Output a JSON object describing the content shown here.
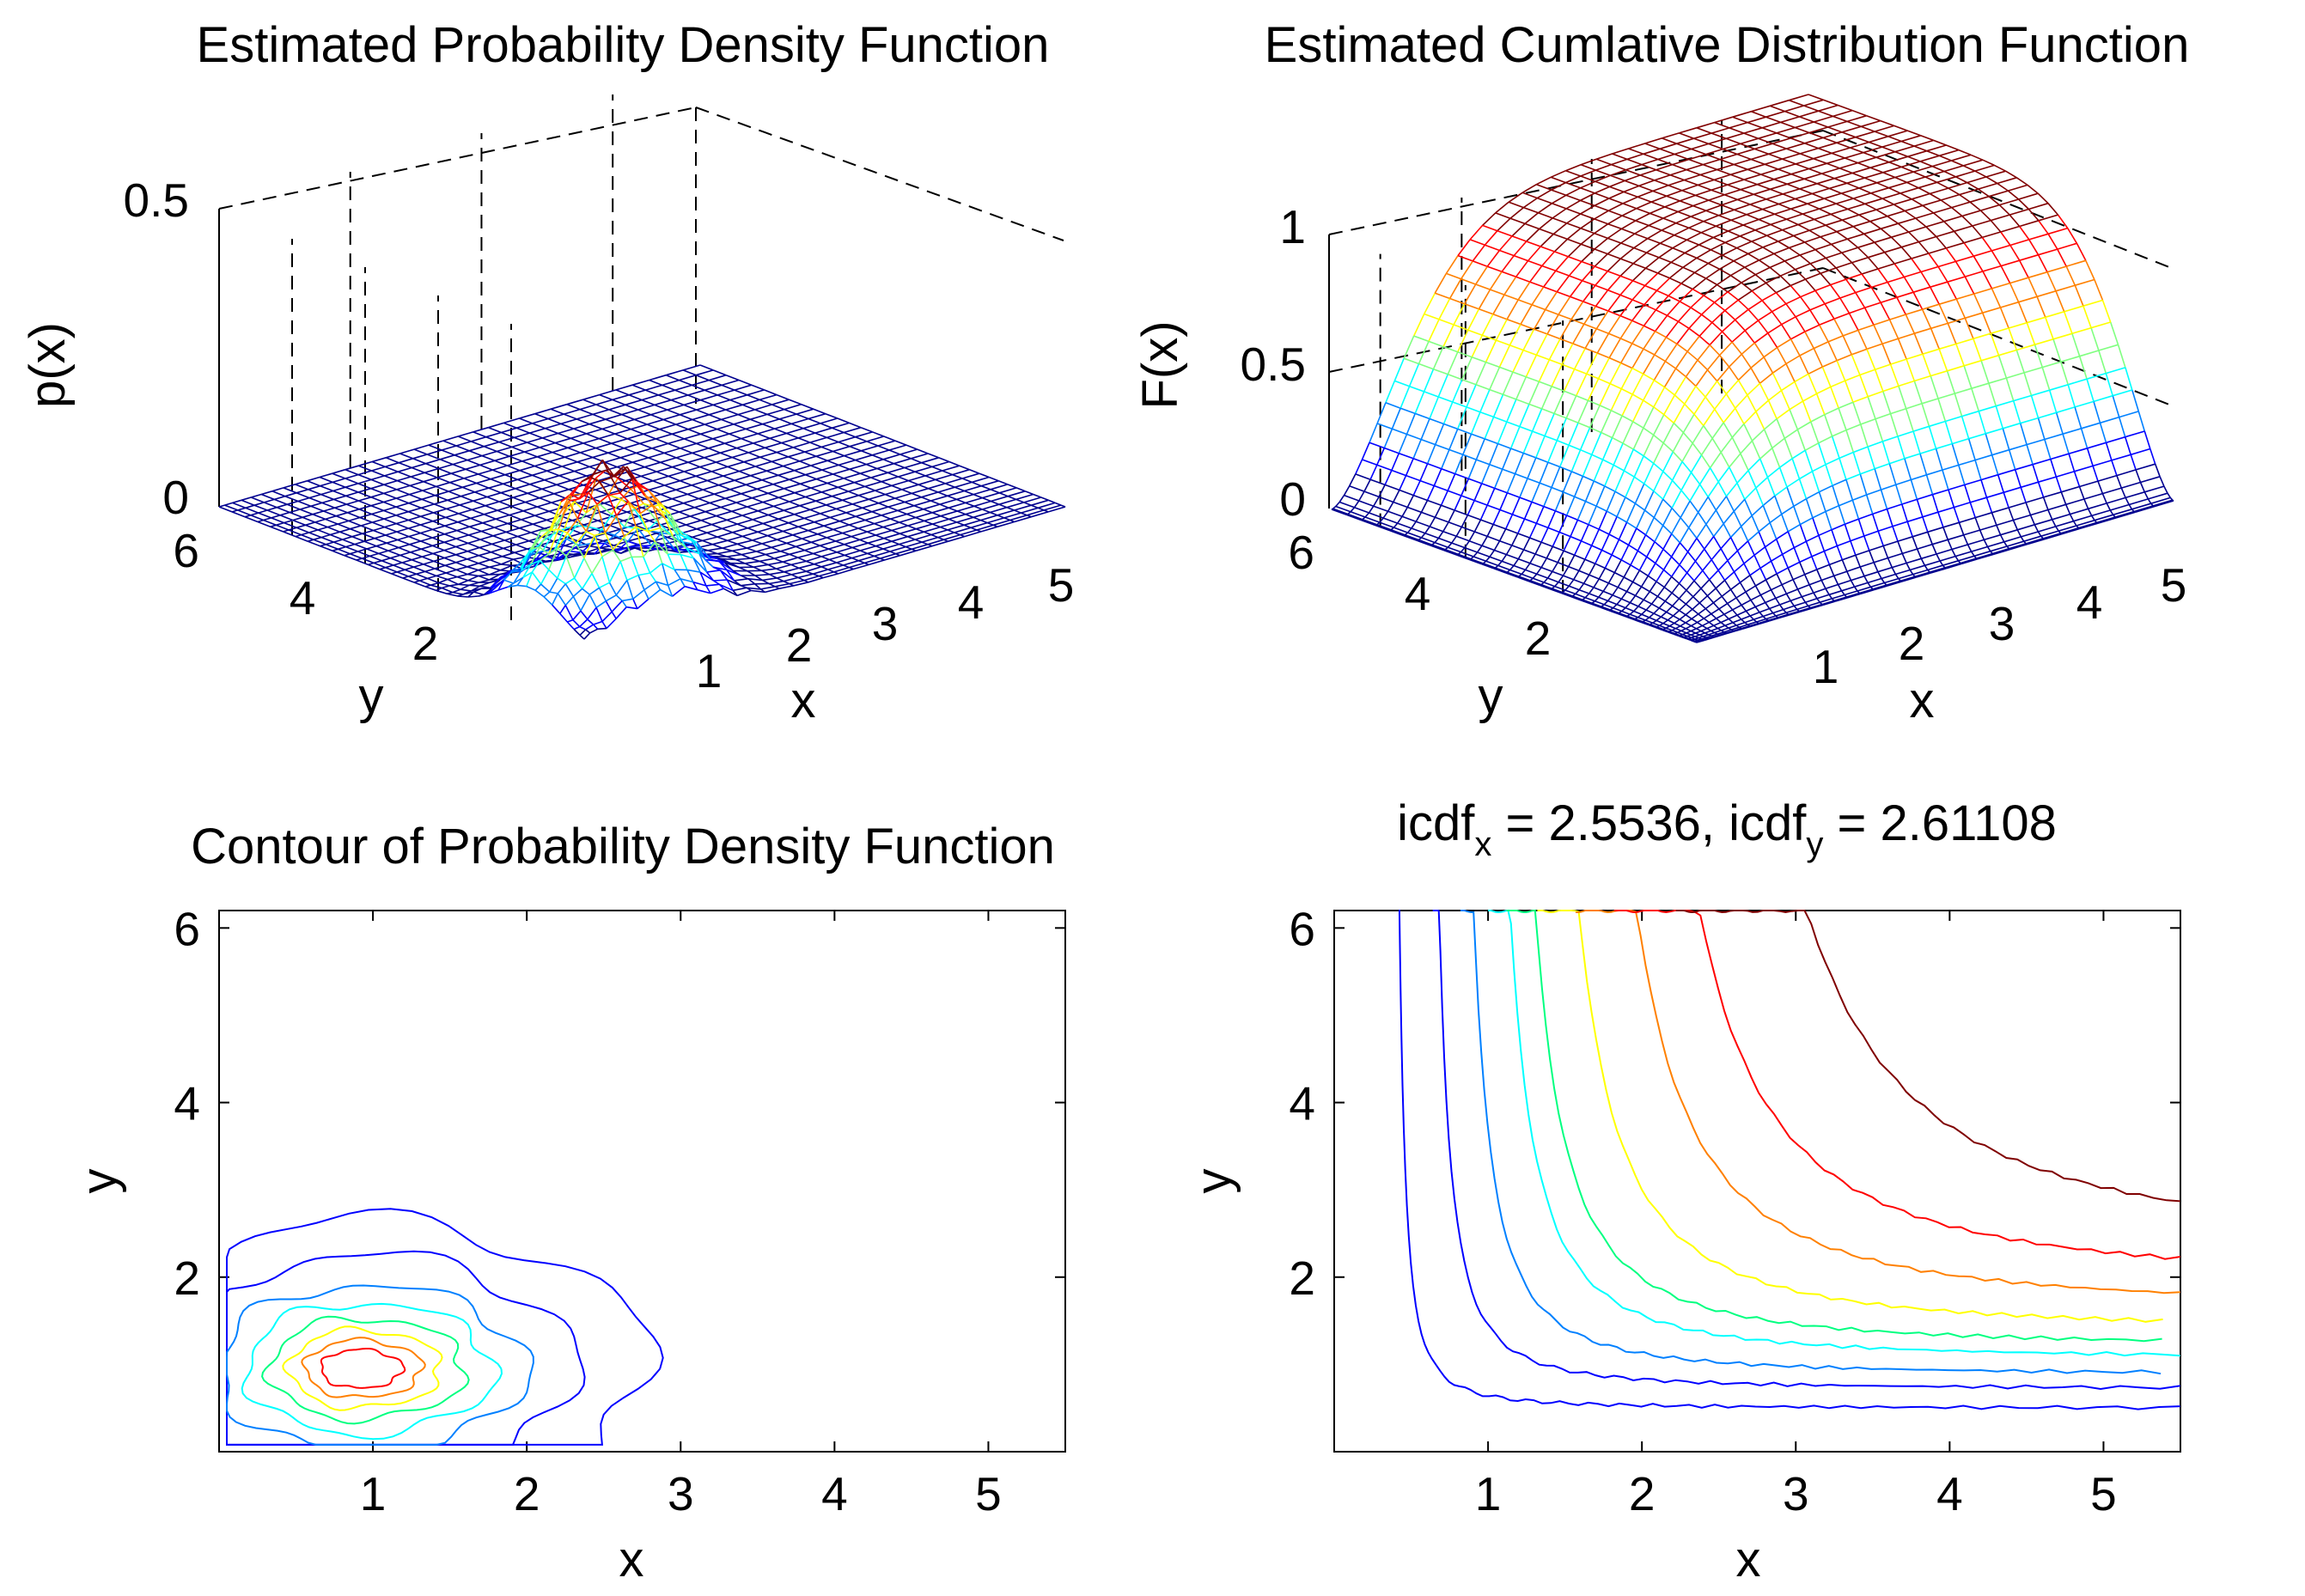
{
  "figure": {
    "colormap": [
      "#00008f",
      "#0000ff",
      "#0080ff",
      "#00ffff",
      "#80ff80",
      "#ffff00",
      "#ff8000",
      "#ff0000",
      "#800000"
    ]
  },
  "chart_data": [
    {
      "type": "surface",
      "title": "Estimated Probability Density Function",
      "xlabel": "x",
      "ylabel": "y",
      "zlabel": "p(x)",
      "xlim": [
        0,
        5.5
      ],
      "ylim": [
        0,
        6
      ],
      "zlim": [
        0,
        0.5
      ],
      "x_ticks": [
        "1",
        "2",
        "3",
        "4",
        "5"
      ],
      "y_ticks": [
        "2",
        "4",
        "6"
      ],
      "z_ticks": [
        "0",
        "0.5"
      ],
      "peak": {
        "x": 0.9,
        "y": 0.9,
        "p": 0.23
      }
    },
    {
      "type": "surface",
      "title": "Estimated Cumlative Distribution Function",
      "xlabel": "x",
      "ylabel": "y",
      "zlabel": "F(x)",
      "xlim": [
        0,
        5.5
      ],
      "ylim": [
        0,
        6
      ],
      "zlim": [
        0,
        1
      ],
      "x_ticks": [
        "1",
        "2",
        "3",
        "4",
        "5"
      ],
      "y_ticks": [
        "2",
        "4",
        "6"
      ],
      "z_ticks": [
        "0",
        "0.5",
        "1"
      ]
    },
    {
      "type": "contour",
      "title": "Contour of Probability Density Function",
      "xlabel": "x",
      "ylabel": "y",
      "xlim": [
        0,
        5.5
      ],
      "ylim": [
        0,
        6.2
      ],
      "x_ticks": [
        1,
        2,
        3,
        4,
        5
      ],
      "y_ticks": [
        2,
        4,
        6
      ],
      "x_tick_labels": [
        "1",
        "2",
        "3",
        "4",
        "5"
      ],
      "y_tick_labels": [
        "2",
        "4",
        "6"
      ],
      "center": {
        "x": 0.9,
        "y": 0.95
      },
      "levels": [
        {
          "color": "#0000ff",
          "rx": 1.8,
          "ry": 1.7
        },
        {
          "color": "#0000ff",
          "rx": 1.35,
          "ry": 1.3
        },
        {
          "color": "#0080ff",
          "rx": 1.05,
          "ry": 0.95
        },
        {
          "color": "#00ffff",
          "rx": 0.85,
          "ry": 0.75
        },
        {
          "color": "#00ff80",
          "rx": 0.67,
          "ry": 0.58
        },
        {
          "color": "#ffff00",
          "rx": 0.52,
          "ry": 0.45
        },
        {
          "color": "#ff8000",
          "rx": 0.4,
          "ry": 0.33
        },
        {
          "color": "#ff0000",
          "rx": 0.28,
          "ry": 0.22
        }
      ]
    },
    {
      "type": "contour",
      "title_parts": {
        "a": "icdf",
        "a_sub": "x",
        "b": " = 2.5536, icdf",
        "b_sub": "y",
        "c": " = 2.61108"
      },
      "xlabel": "x",
      "ylabel": "y",
      "xlim": [
        0,
        5.5
      ],
      "ylim": [
        0,
        6.2
      ],
      "x_ticks": [
        1,
        2,
        3,
        4,
        5
      ],
      "y_ticks": [
        2,
        4,
        6
      ],
      "x_tick_labels": [
        "1",
        "2",
        "3",
        "4",
        "5"
      ],
      "y_tick_labels": [
        "2",
        "4",
        "6"
      ],
      "levels": [
        {
          "color": "#0000ff",
          "x_asym": 0.4,
          "y_asym": 0.5
        },
        {
          "color": "#0000ff",
          "x_asym": 0.62,
          "y_asym": 0.72
        },
        {
          "color": "#0080ff",
          "x_asym": 0.8,
          "y_asym": 0.88
        },
        {
          "color": "#00ffff",
          "x_asym": 0.98,
          "y_asym": 1.06
        },
        {
          "color": "#00ff80",
          "x_asym": 1.1,
          "y_asym": 1.2
        },
        {
          "color": "#ffff00",
          "x_asym": 1.3,
          "y_asym": 1.38
        },
        {
          "color": "#ff8000",
          "x_asym": 1.55,
          "y_asym": 1.62
        },
        {
          "color": "#ff0000",
          "x_asym": 1.8,
          "y_asym": 1.9
        },
        {
          "color": "#800000",
          "x_asym": 2.2,
          "y_asym": 2.25
        }
      ]
    }
  ]
}
